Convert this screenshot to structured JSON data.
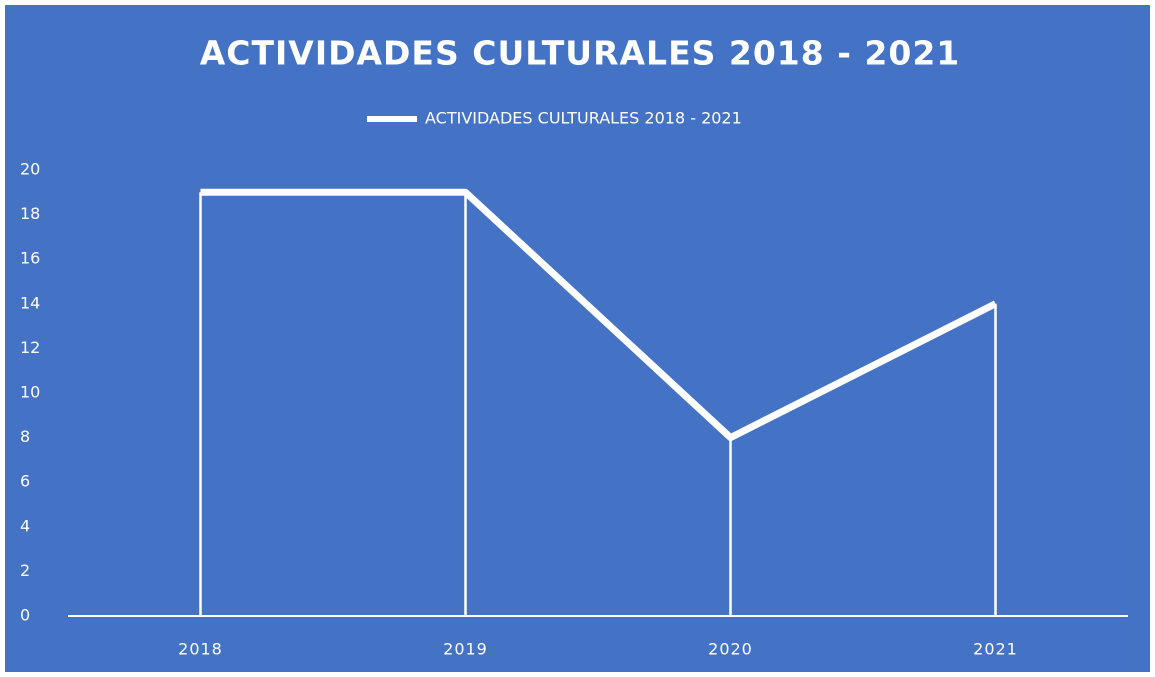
{
  "chart_data": {
    "type": "line",
    "title": "ACTIVIDADES CULTURALES 2018 - 2021",
    "categories": [
      "2018",
      "2019",
      "2020",
      "2021"
    ],
    "series": [
      {
        "name": "ACTIVIDADES CULTURALES 2018 - 2021",
        "color": "#ffffff",
        "values": [
          19,
          19,
          8,
          14
        ]
      }
    ],
    "ylim": [
      0,
      20
    ],
    "yticks": [
      0,
      2,
      4,
      6,
      8,
      10,
      12,
      14,
      16,
      18,
      20
    ],
    "drop_lines": true,
    "grid": false,
    "legend": "top",
    "background": "#4472c4"
  }
}
